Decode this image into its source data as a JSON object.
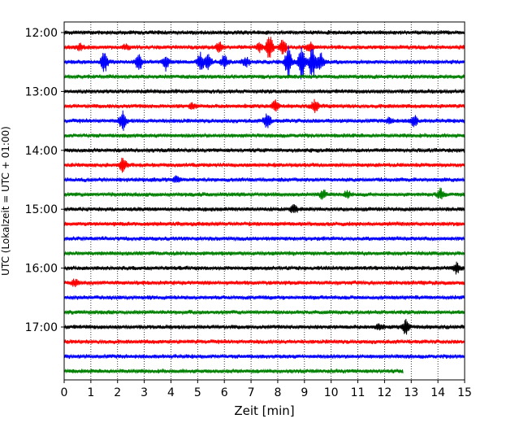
{
  "chart_data": {
    "type": "line",
    "xlabel": "Zeit  [min]",
    "ylabel": "UTC (Lokalzeit = UTC + 01:00)",
    "xlim": [
      0,
      15
    ],
    "x_ticks": [
      0,
      1,
      2,
      3,
      4,
      5,
      6,
      7,
      8,
      9,
      10,
      11,
      12,
      13,
      14,
      15
    ],
    "y_tick_labels": [
      "12:00",
      "13:00",
      "14:00",
      "15:00",
      "16:00",
      "17:00"
    ],
    "grid": "vertical-dotted",
    "trace_colors": [
      "#000000",
      "#ff0000",
      "#0000ff",
      "#008000"
    ],
    "trace_start_times": [
      "12:00",
      "12:15",
      "12:30",
      "12:45",
      "13:00",
      "13:15",
      "13:30",
      "13:45",
      "14:00",
      "14:15",
      "14:30",
      "14:45",
      "15:00",
      "15:15",
      "15:30",
      "15:45",
      "16:00",
      "16:15",
      "16:30",
      "16:45",
      "17:00",
      "17:15",
      "17:30",
      "17:45"
    ],
    "last_trace_end_min": 12.7,
    "events": [
      {
        "trace": 1,
        "time_min": 0.6,
        "amp": 0.7
      },
      {
        "trace": 1,
        "time_min": 2.3,
        "amp": 0.6
      },
      {
        "trace": 1,
        "time_min": 5.8,
        "amp": 1.3
      },
      {
        "trace": 1,
        "time_min": 7.3,
        "amp": 1.0
      },
      {
        "trace": 1,
        "time_min": 7.7,
        "amp": 2.8
      },
      {
        "trace": 1,
        "time_min": 8.2,
        "amp": 1.6
      },
      {
        "trace": 1,
        "time_min": 9.2,
        "amp": 1.0
      },
      {
        "trace": 2,
        "time_min": 1.5,
        "amp": 2.6
      },
      {
        "trace": 2,
        "time_min": 2.8,
        "amp": 1.8
      },
      {
        "trace": 2,
        "time_min": 3.8,
        "amp": 1.8
      },
      {
        "trace": 2,
        "time_min": 5.1,
        "amp": 2.2
      },
      {
        "trace": 2,
        "time_min": 5.4,
        "amp": 1.6
      },
      {
        "trace": 2,
        "time_min": 6.0,
        "amp": 1.5
      },
      {
        "trace": 2,
        "time_min": 6.8,
        "amp": 1.2
      },
      {
        "trace": 2,
        "time_min": 8.4,
        "amp": 3.5
      },
      {
        "trace": 2,
        "time_min": 8.9,
        "amp": 4.5
      },
      {
        "trace": 2,
        "time_min": 9.3,
        "amp": 3.8
      },
      {
        "trace": 2,
        "time_min": 9.6,
        "amp": 2.2
      },
      {
        "trace": 5,
        "time_min": 4.8,
        "amp": 0.6
      },
      {
        "trace": 5,
        "time_min": 7.9,
        "amp": 1.3
      },
      {
        "trace": 5,
        "time_min": 9.4,
        "amp": 1.5
      },
      {
        "trace": 6,
        "time_min": 2.2,
        "amp": 2.4
      },
      {
        "trace": 6,
        "time_min": 7.6,
        "amp": 1.9
      },
      {
        "trace": 6,
        "time_min": 12.2,
        "amp": 0.6
      },
      {
        "trace": 6,
        "time_min": 13.1,
        "amp": 1.4
      },
      {
        "trace": 9,
        "time_min": 2.2,
        "amp": 1.8
      },
      {
        "trace": 10,
        "time_min": 4.2,
        "amp": 0.6
      },
      {
        "trace": 11,
        "time_min": 9.7,
        "amp": 0.9
      },
      {
        "trace": 11,
        "time_min": 10.6,
        "amp": 0.8
      },
      {
        "trace": 11,
        "time_min": 14.1,
        "amp": 1.3
      },
      {
        "trace": 12,
        "time_min": 8.6,
        "amp": 1.0
      },
      {
        "trace": 16,
        "time_min": 14.7,
        "amp": 1.2
      },
      {
        "trace": 17,
        "time_min": 0.4,
        "amp": 0.7
      },
      {
        "trace": 20,
        "time_min": 12.8,
        "amp": 1.8
      },
      {
        "trace": 20,
        "time_min": 11.8,
        "amp": 0.6
      }
    ]
  }
}
